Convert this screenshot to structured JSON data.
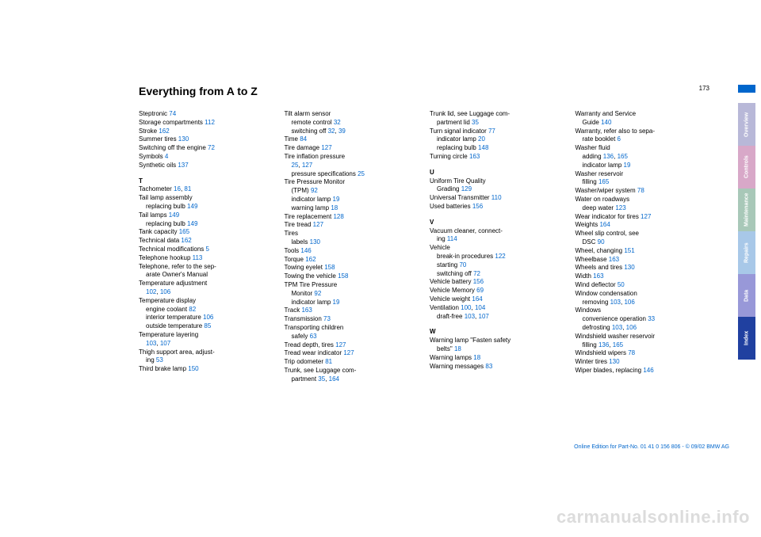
{
  "page": {
    "title": "Everything from A to Z",
    "number": "173"
  },
  "tabs": [
    {
      "label": "Overview",
      "bg": "#b8b8d8"
    },
    {
      "label": "Controls",
      "bg": "#d8a8c8"
    },
    {
      "label": "Maintenance",
      "bg": "#a8c8b8"
    },
    {
      "label": "Repairs",
      "bg": "#a8c8e8"
    },
    {
      "label": "Data",
      "bg": "#9898d8"
    },
    {
      "label": "Index",
      "bg": "#2040a0"
    }
  ],
  "footer": "Online Edition for Part-No. 01 41 0 156 806 - © 09/02 BMW AG",
  "watermark": "carmanualsonline.info",
  "link_color": "#0066cc",
  "columns": [
    [
      {
        "t": "Steptronic ",
        "p": [
          "74"
        ]
      },
      {
        "t": "Storage compartments ",
        "p": [
          "112"
        ]
      },
      {
        "t": "Stroke ",
        "p": [
          "162"
        ]
      },
      {
        "t": "Summer tires ",
        "p": [
          "130"
        ]
      },
      {
        "t": "Switching off the engine ",
        "p": [
          "72"
        ]
      },
      {
        "t": "Symbols ",
        "p": [
          "4"
        ]
      },
      {
        "t": "Synthetic oils ",
        "p": [
          "137"
        ]
      },
      {
        "letter": "T"
      },
      {
        "t": "Tachometer ",
        "p": [
          "16",
          "81"
        ]
      },
      {
        "t": "Tail lamp assembly"
      },
      {
        "sub": true,
        "t": "replacing bulb ",
        "p": [
          "149"
        ]
      },
      {
        "t": "Tail lamps ",
        "p": [
          "149"
        ]
      },
      {
        "sub": true,
        "t": "replacing bulb ",
        "p": [
          "149"
        ]
      },
      {
        "t": "Tank capacity ",
        "p": [
          "165"
        ]
      },
      {
        "t": "Technical data ",
        "p": [
          "162"
        ]
      },
      {
        "t": "Technical modifications ",
        "p": [
          "5"
        ]
      },
      {
        "t": "Telephone hookup ",
        "p": [
          "113"
        ]
      },
      {
        "t": "Telephone, refer to the sep-"
      },
      {
        "sub": true,
        "t": "arate Owner's Manual"
      },
      {
        "t": "Temperature adjustment "
      },
      {
        "sub": true,
        "t": "",
        "p": [
          "102",
          "106"
        ]
      },
      {
        "t": "Temperature display"
      },
      {
        "sub": true,
        "t": "engine coolant ",
        "p": [
          "82"
        ]
      },
      {
        "sub": true,
        "t": "interior temperature ",
        "p": [
          "106"
        ]
      },
      {
        "sub": true,
        "t": "outside temperature ",
        "p": [
          "85"
        ]
      },
      {
        "t": "Temperature layering "
      },
      {
        "sub": true,
        "t": "",
        "p": [
          "103",
          "107"
        ]
      },
      {
        "t": "Thigh support area, adjust-"
      },
      {
        "sub": true,
        "t": "ing ",
        "p": [
          "53"
        ]
      },
      {
        "t": "Third brake lamp ",
        "p": [
          "150"
        ]
      }
    ],
    [
      {
        "t": "Tilt alarm sensor"
      },
      {
        "sub": true,
        "t": "remote control ",
        "p": [
          "32"
        ]
      },
      {
        "sub": true,
        "t": "switching off ",
        "p": [
          "32",
          "39"
        ]
      },
      {
        "t": "Time ",
        "p": [
          "84"
        ]
      },
      {
        "t": "Tire damage ",
        "p": [
          "127"
        ]
      },
      {
        "t": "Tire inflation pressure "
      },
      {
        "sub": true,
        "t": "",
        "p": [
          "25",
          "127"
        ]
      },
      {
        "sub": true,
        "t": "pressure specifications ",
        "p": [
          "25"
        ]
      },
      {
        "t": "Tire Pressure Monitor "
      },
      {
        "sub": true,
        "t": "(TPM) ",
        "p": [
          "92"
        ]
      },
      {
        "sub": true,
        "t": "indicator lamp ",
        "p": [
          "19"
        ]
      },
      {
        "sub": true,
        "t": "warning lamp ",
        "p": [
          "18"
        ]
      },
      {
        "t": "Tire replacement ",
        "p": [
          "128"
        ]
      },
      {
        "t": "Tire tread ",
        "p": [
          "127"
        ]
      },
      {
        "t": "Tires"
      },
      {
        "sub": true,
        "t": "labels ",
        "p": [
          "130"
        ]
      },
      {
        "t": "Tools ",
        "p": [
          "146"
        ]
      },
      {
        "t": "Torque ",
        "p": [
          "162"
        ]
      },
      {
        "t": "Towing eyelet ",
        "p": [
          "158"
        ]
      },
      {
        "t": "Towing the vehicle ",
        "p": [
          "158"
        ]
      },
      {
        "t": "TPM Tire Pressure "
      },
      {
        "sub": true,
        "t": "Monitor ",
        "p": [
          "92"
        ]
      },
      {
        "sub": true,
        "t": "indicator lamp ",
        "p": [
          "19"
        ]
      },
      {
        "t": "Track ",
        "p": [
          "163"
        ]
      },
      {
        "t": "Transmission ",
        "p": [
          "73"
        ]
      },
      {
        "t": "Transporting children "
      },
      {
        "sub": true,
        "t": "safely ",
        "p": [
          "63"
        ]
      },
      {
        "t": "Tread depth, tires ",
        "p": [
          "127"
        ]
      },
      {
        "t": "Tread wear indicator ",
        "p": [
          "127"
        ]
      },
      {
        "t": "Trip odometer ",
        "p": [
          "81"
        ]
      },
      {
        "t": "Trunk, see Luggage com-"
      },
      {
        "sub": true,
        "t": "partment ",
        "p": [
          "35",
          "164"
        ]
      }
    ],
    [
      {
        "t": "Trunk lid, see Luggage com-"
      },
      {
        "sub": true,
        "t": "partment lid ",
        "p": [
          "35"
        ]
      },
      {
        "t": "Turn signal indicator ",
        "p": [
          "77"
        ]
      },
      {
        "sub": true,
        "t": "indicator lamp ",
        "p": [
          "20"
        ]
      },
      {
        "sub": true,
        "t": "replacing bulb ",
        "p": [
          "148"
        ]
      },
      {
        "t": "Turning circle ",
        "p": [
          "163"
        ]
      },
      {
        "letter": "U"
      },
      {
        "t": "Uniform Tire Quality "
      },
      {
        "sub": true,
        "t": "Grading ",
        "p": [
          "129"
        ]
      },
      {
        "t": "Universal Transmitter ",
        "p": [
          "110"
        ]
      },
      {
        "t": "Used batteries ",
        "p": [
          "156"
        ]
      },
      {
        "letter": "V"
      },
      {
        "t": "Vacuum cleaner, connect-"
      },
      {
        "sub": true,
        "t": "ing ",
        "p": [
          "114"
        ]
      },
      {
        "t": "Vehicle"
      },
      {
        "sub": true,
        "t": "break-in procedures ",
        "p": [
          "122"
        ]
      },
      {
        "sub": true,
        "t": "starting ",
        "p": [
          "70"
        ]
      },
      {
        "sub": true,
        "t": "switching off ",
        "p": [
          "72"
        ]
      },
      {
        "t": "Vehicle battery ",
        "p": [
          "156"
        ]
      },
      {
        "t": "Vehicle Memory ",
        "p": [
          "69"
        ]
      },
      {
        "t": "Vehicle weight ",
        "p": [
          "164"
        ]
      },
      {
        "t": "Ventilation ",
        "p": [
          "100",
          "104"
        ]
      },
      {
        "sub": true,
        "t": "draft-free ",
        "p": [
          "103",
          "107"
        ]
      },
      {
        "letter": "W"
      },
      {
        "t": "Warning lamp \"Fasten safety "
      },
      {
        "sub": true,
        "t": "belts\" ",
        "p": [
          "18"
        ]
      },
      {
        "t": "Warning lamps ",
        "p": [
          "18"
        ]
      },
      {
        "t": "Warning messages ",
        "p": [
          "83"
        ]
      }
    ],
    [
      {
        "t": "Warranty and Service "
      },
      {
        "sub": true,
        "t": "Guide ",
        "p": [
          "140"
        ]
      },
      {
        "t": "Warranty, refer also to sepa-"
      },
      {
        "sub": true,
        "t": "rate booklet ",
        "p": [
          "6"
        ]
      },
      {
        "t": "Washer fluid"
      },
      {
        "sub": true,
        "t": "adding ",
        "p": [
          "136",
          "165"
        ]
      },
      {
        "sub": true,
        "t": "indicator lamp ",
        "p": [
          "19"
        ]
      },
      {
        "t": "Washer reservoir"
      },
      {
        "sub": true,
        "t": "filling ",
        "p": [
          "165"
        ]
      },
      {
        "t": "Washer/wiper system ",
        "p": [
          "78"
        ]
      },
      {
        "t": "Water on roadways"
      },
      {
        "sub": true,
        "t": "deep water ",
        "p": [
          "123"
        ]
      },
      {
        "t": "Wear indicator for tires ",
        "p": [
          "127"
        ]
      },
      {
        "t": "Weights ",
        "p": [
          "164"
        ]
      },
      {
        "t": "Wheel slip control, see "
      },
      {
        "sub": true,
        "t": "DSC ",
        "p": [
          "90"
        ]
      },
      {
        "t": "Wheel, changing ",
        "p": [
          "151"
        ]
      },
      {
        "t": "Wheelbase ",
        "p": [
          "163"
        ]
      },
      {
        "t": "Wheels and tires ",
        "p": [
          "130"
        ]
      },
      {
        "t": "Width ",
        "p": [
          "163"
        ]
      },
      {
        "t": "Wind deflector ",
        "p": [
          "50"
        ]
      },
      {
        "t": "Window condensation"
      },
      {
        "sub": true,
        "t": "removing ",
        "p": [
          "103",
          "106"
        ]
      },
      {
        "t": "Windows"
      },
      {
        "sub": true,
        "t": "convenience operation ",
        "p": [
          "33"
        ]
      },
      {
        "sub": true,
        "t": "defrosting ",
        "p": [
          "103",
          "106"
        ]
      },
      {
        "t": "Windshield washer reservoir"
      },
      {
        "sub": true,
        "t": "filling ",
        "p": [
          "136",
          "165"
        ]
      },
      {
        "t": "Windshield wipers ",
        "p": [
          "78"
        ]
      },
      {
        "t": "Winter tires ",
        "p": [
          "130"
        ]
      },
      {
        "t": "Wiper blades, replacing ",
        "p": [
          "146"
        ]
      }
    ]
  ]
}
